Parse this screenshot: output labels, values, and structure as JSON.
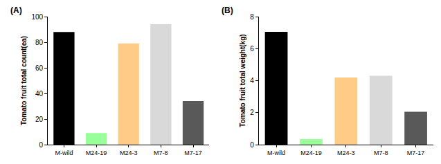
{
  "chart_data": [
    {
      "type": "bar",
      "title": "(A)",
      "ylabel": "Tomato fruit total count(ea)",
      "categories": [
        "M-wild",
        "M24-19",
        "M24-3",
        "M7-8",
        "M7-17"
      ],
      "values": [
        88,
        9,
        79,
        94,
        34
      ],
      "colors": [
        "#000000",
        "#99ff99",
        "#ffcc88",
        "#d9d9d9",
        "#595959"
      ],
      "ylim": [
        0,
        100
      ],
      "yticks": [
        0,
        20,
        40,
        60,
        80,
        100
      ],
      "grid": false
    },
    {
      "type": "bar",
      "title": "(B)",
      "ylabel": "Tomato fruit total weight(kg)",
      "categories": [
        "M-wild",
        "M24-19",
        "M24-3",
        "M7-8",
        "M7-17"
      ],
      "values": [
        7.05,
        0.35,
        4.2,
        4.3,
        2.05
      ],
      "colors": [
        "#000000",
        "#99ff99",
        "#ffcc88",
        "#d9d9d9",
        "#595959"
      ],
      "ylim": [
        0,
        8
      ],
      "yticks": [
        0,
        2,
        4,
        6,
        8
      ],
      "grid": false
    }
  ]
}
